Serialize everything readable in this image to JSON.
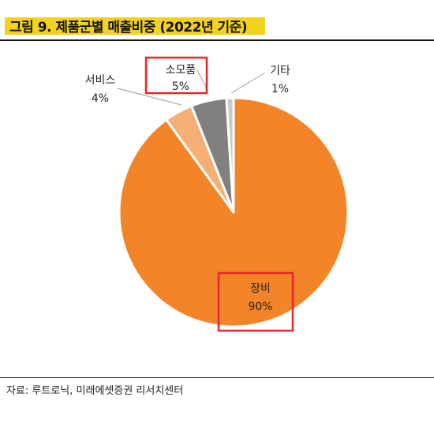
{
  "title": "그림 9. 제품군별 매출비중 (2022년 기준)",
  "source": "자료: 루트로닉, 미래에셋증권 리서치센터",
  "chart_data": {
    "type": "pie",
    "slices": [
      {
        "label": "장비",
        "value": 90,
        "value_label": "90%",
        "color": "#f38427",
        "highlighted": true
      },
      {
        "label": "서비스",
        "value": 4,
        "value_label": "4%",
        "color": "#f4b074",
        "highlighted": false
      },
      {
        "label": "소모품",
        "value": 5,
        "value_label": "5%",
        "color": "#808080",
        "highlighted": true
      },
      {
        "label": "기타",
        "value": 1,
        "value_label": "1%",
        "color": "#c9c9c9",
        "highlighted": false
      }
    ],
    "start_angle_deg": 0,
    "highlight_color": "#e8262c"
  }
}
